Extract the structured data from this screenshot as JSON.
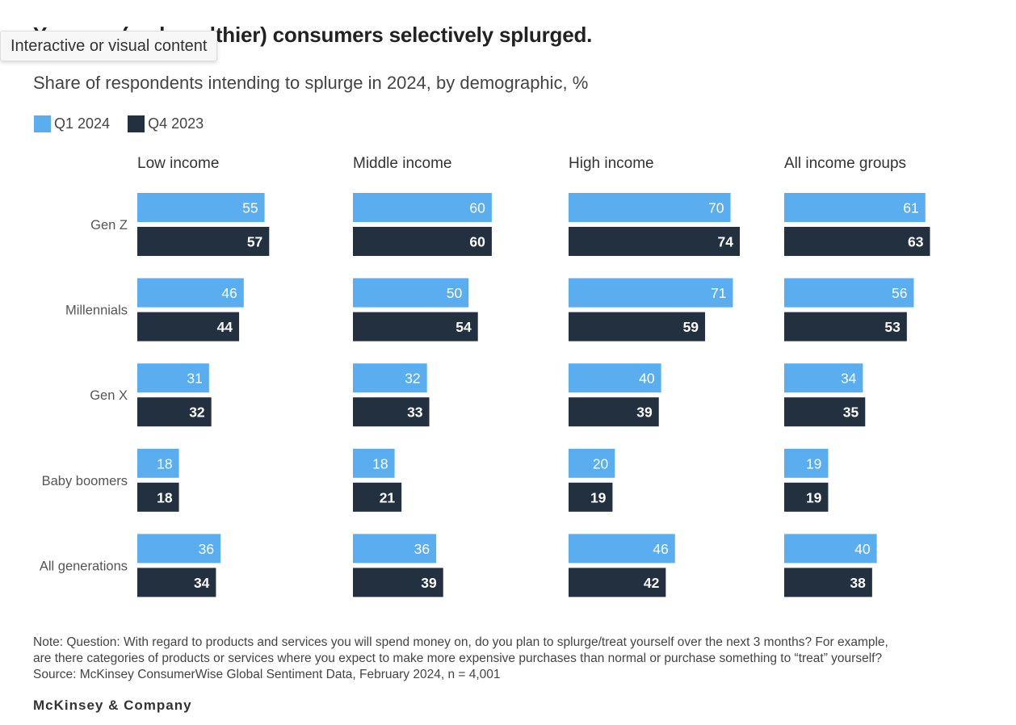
{
  "tooltip": "Interactive or visual content",
  "colors": {
    "q1_2024": "#5aadee",
    "q4_2023": "#22303f"
  },
  "footer": {
    "note_line1": "Note: Question: With regard to products and services you will spend money on, do you plan to splurge/treat yourself over the next 3 months? For example,",
    "note_line2": "are there categories of products or services where you expect to make more expensive purchases than normal or purchase something to “treat” yourself?",
    "source": "Source: McKinsey ConsumerWise Global Sentiment Data, February 2024, n = 4,001",
    "brand": "McKinsey & Company"
  },
  "chart_data": {
    "type": "bar",
    "orientation": "horizontal",
    "title": "Younger (and wealthier) consumers selectively splurged.",
    "subtitle": "Share of respondents intending to splurge in 2024, by demographic, %",
    "legend": [
      "Q1 2024",
      "Q4 2023"
    ],
    "legend_position": "top-left",
    "categories": [
      "Gen Z",
      "Millennials",
      "Gen X",
      "Baby boomers",
      "All generations"
    ],
    "panels": [
      {
        "title": "Low income",
        "series": [
          {
            "name": "Q1 2024",
            "values": [
              55,
              46,
              31,
              18,
              36
            ]
          },
          {
            "name": "Q4 2023",
            "values": [
              57,
              44,
              32,
              18,
              34
            ]
          }
        ]
      },
      {
        "title": "Middle income",
        "series": [
          {
            "name": "Q1 2024",
            "values": [
              60,
              50,
              32,
              18,
              36
            ]
          },
          {
            "name": "Q4 2023",
            "values": [
              60,
              54,
              33,
              21,
              39
            ]
          }
        ]
      },
      {
        "title": "High income",
        "series": [
          {
            "name": "Q1 2024",
            "values": [
              70,
              71,
              40,
              20,
              46
            ]
          },
          {
            "name": "Q4 2023",
            "values": [
              74,
              59,
              39,
              19,
              42
            ]
          }
        ]
      },
      {
        "title": "All income groups",
        "series": [
          {
            "name": "Q1 2024",
            "values": [
              61,
              56,
              34,
              19,
              40
            ]
          },
          {
            "name": "Q4 2023",
            "values": [
              63,
              53,
              35,
              19,
              38
            ]
          }
        ]
      }
    ],
    "xlim": [
      0,
      100
    ],
    "grid": false
  }
}
